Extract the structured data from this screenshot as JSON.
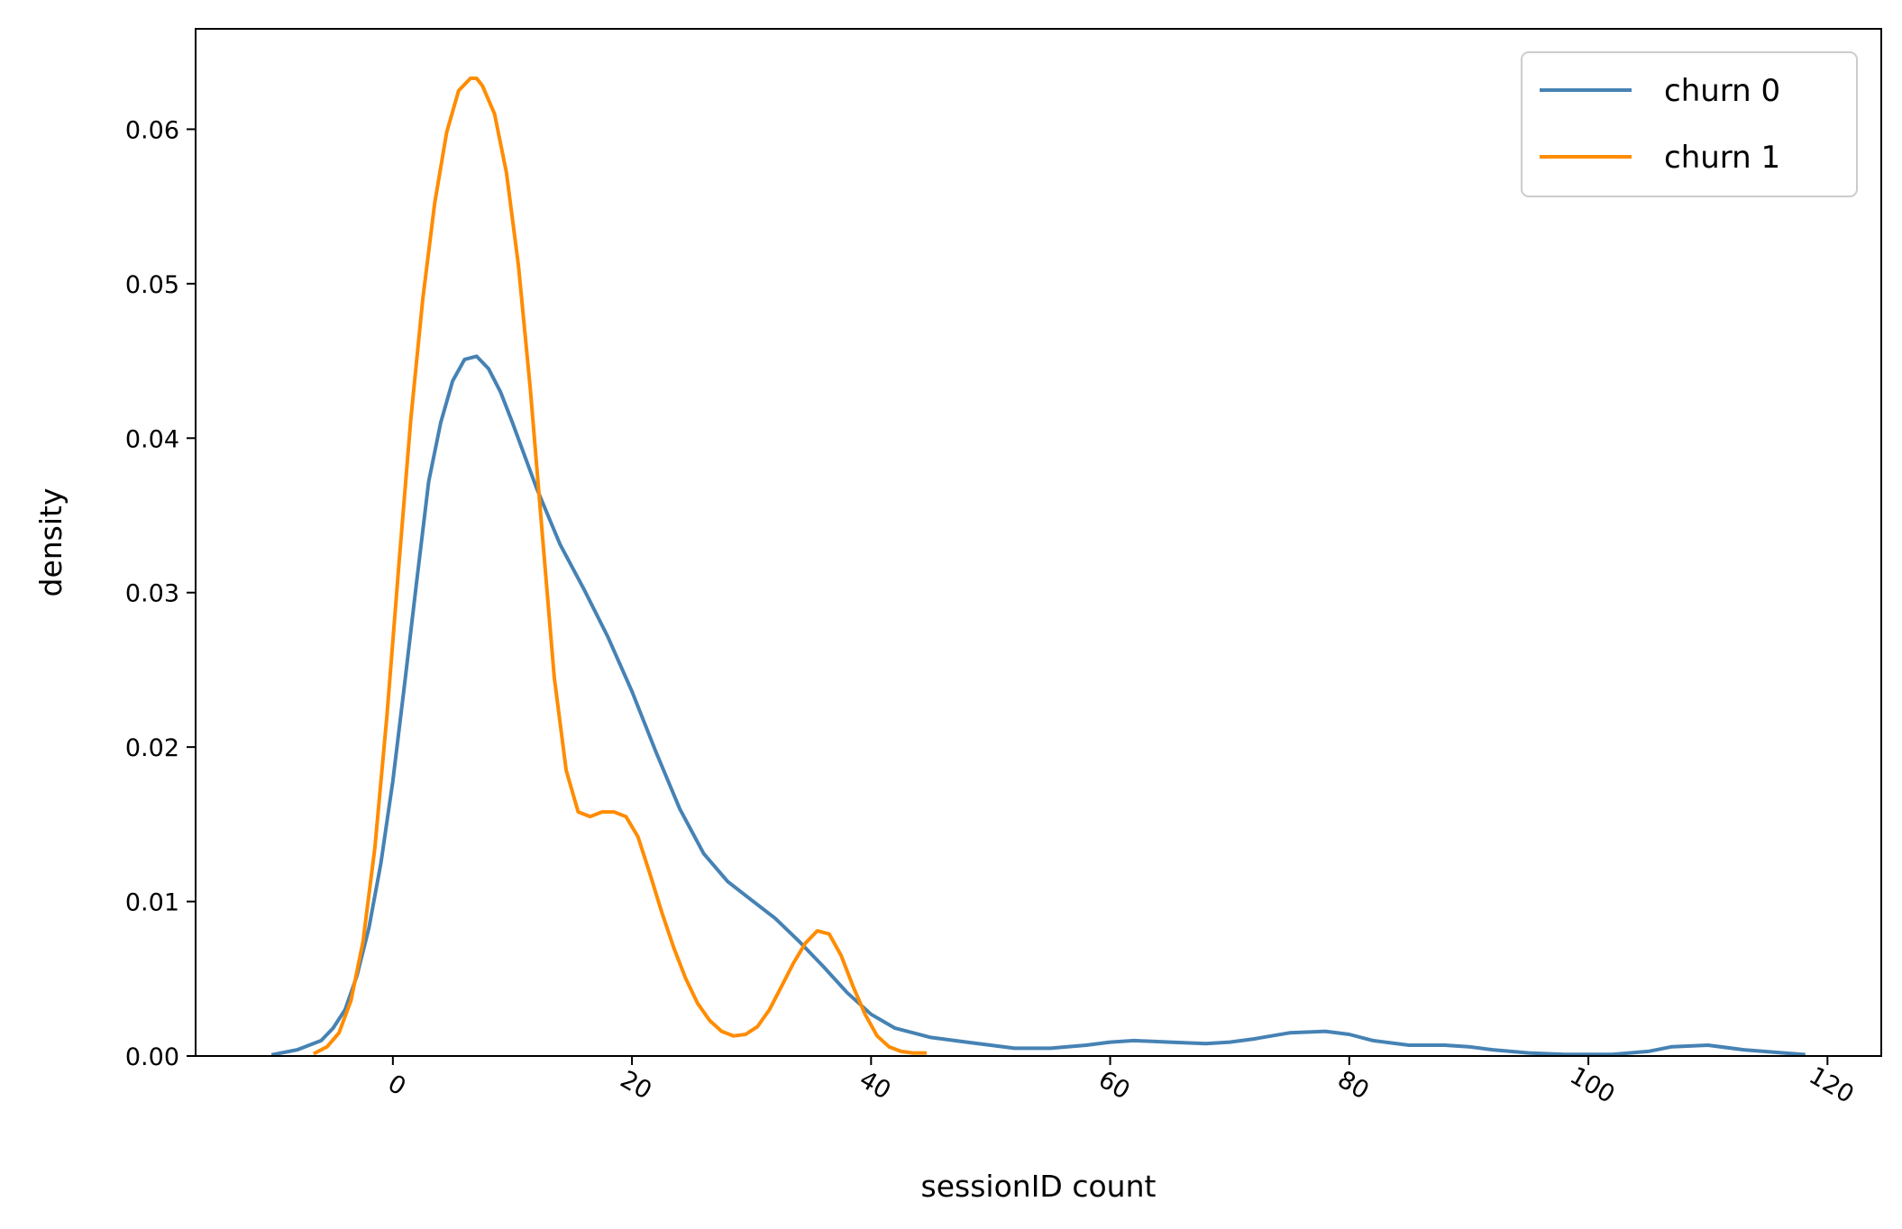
{
  "chart_data": {
    "type": "line",
    "title": "",
    "xlabel": "sessionID count",
    "ylabel": "density",
    "xlim": [
      -16.5,
      124.5
    ],
    "ylim": [
      0.0,
      0.0665
    ],
    "xticks": [
      0,
      20,
      40,
      60,
      80,
      100,
      120
    ],
    "xtick_labels": [
      "0",
      "20",
      "40",
      "60",
      "80",
      "100",
      "120"
    ],
    "xtick_rotation_deg": 30,
    "yticks": [
      0.0,
      0.01,
      0.02,
      0.03,
      0.04,
      0.05,
      0.06
    ],
    "ytick_labels": [
      "0.00",
      "0.01",
      "0.02",
      "0.03",
      "0.04",
      "0.05",
      "0.06"
    ],
    "grid": false,
    "legend_position": "top-right",
    "series": [
      {
        "name": "churn 0",
        "color": "#4682b4",
        "x": [
          -10,
          -8,
          -6,
          -5,
          -4,
          -3,
          -2,
          -1,
          0,
          1,
          2,
          3,
          4,
          5,
          6,
          7,
          8,
          9,
          10,
          12,
          14,
          16,
          18,
          20,
          22,
          24,
          26,
          28,
          30,
          32,
          34,
          36,
          38,
          40,
          42,
          45,
          48,
          50,
          52,
          55,
          58,
          60,
          62,
          65,
          68,
          70,
          72,
          75,
          78,
          80,
          82,
          85,
          88,
          90,
          92,
          95,
          98,
          100,
          102,
          105,
          107,
          110,
          113,
          118
        ],
        "y": [
          0.0001,
          0.0004,
          0.001,
          0.0018,
          0.003,
          0.0052,
          0.0083,
          0.0125,
          0.0178,
          0.0242,
          0.0308,
          0.0372,
          0.041,
          0.0437,
          0.0451,
          0.0453,
          0.0445,
          0.043,
          0.041,
          0.0368,
          0.0331,
          0.0302,
          0.0271,
          0.0236,
          0.0197,
          0.016,
          0.0131,
          0.0113,
          0.0101,
          0.0089,
          0.0074,
          0.0058,
          0.0041,
          0.0027,
          0.0018,
          0.0012,
          0.0009,
          0.0007,
          0.0005,
          0.0005,
          0.0007,
          0.0009,
          0.001,
          0.0009,
          0.0008,
          0.0009,
          0.0011,
          0.0015,
          0.0016,
          0.0014,
          0.001,
          0.0007,
          0.0007,
          0.0006,
          0.0004,
          0.0002,
          0.0001,
          0.0001,
          0.0001,
          0.0003,
          0.0006,
          0.0007,
          0.0004,
          0.0001
        ]
      },
      {
        "name": "churn 1",
        "color": "#ff8c00",
        "x": [
          -6.5,
          -5.5,
          -4.5,
          -3.5,
          -2.5,
          -1.5,
          -0.5,
          0.5,
          1.5,
          2.5,
          3.5,
          4.5,
          5.5,
          6.5,
          7,
          7.5,
          8.5,
          9.5,
          10.5,
          11.5,
          12.5,
          13.5,
          14.5,
          15.5,
          16.5,
          17.5,
          18.5,
          19.5,
          20.5,
          21.5,
          22.5,
          23.5,
          24.5,
          25.5,
          26.5,
          27.5,
          28.5,
          29.5,
          30.5,
          31.5,
          32.5,
          33.5,
          34.5,
          35.5,
          36.5,
          37.5,
          38.5,
          39.5,
          40.5,
          41.5,
          42.5,
          43.5,
          44.5
        ],
        "y": [
          0.0002,
          0.0006,
          0.0015,
          0.0036,
          0.0074,
          0.0135,
          0.022,
          0.0318,
          0.0412,
          0.049,
          0.0552,
          0.0598,
          0.0625,
          0.0633,
          0.0633,
          0.0628,
          0.061,
          0.0572,
          0.0512,
          0.0432,
          0.0338,
          0.0245,
          0.0185,
          0.0158,
          0.0155,
          0.0158,
          0.0158,
          0.0155,
          0.0142,
          0.0118,
          0.0093,
          0.007,
          0.005,
          0.0034,
          0.0023,
          0.0016,
          0.0013,
          0.0014,
          0.0019,
          0.003,
          0.0045,
          0.006,
          0.0073,
          0.0081,
          0.0079,
          0.0065,
          0.0045,
          0.0027,
          0.0013,
          0.0006,
          0.0003,
          0.0002,
          0.0002
        ]
      }
    ]
  }
}
